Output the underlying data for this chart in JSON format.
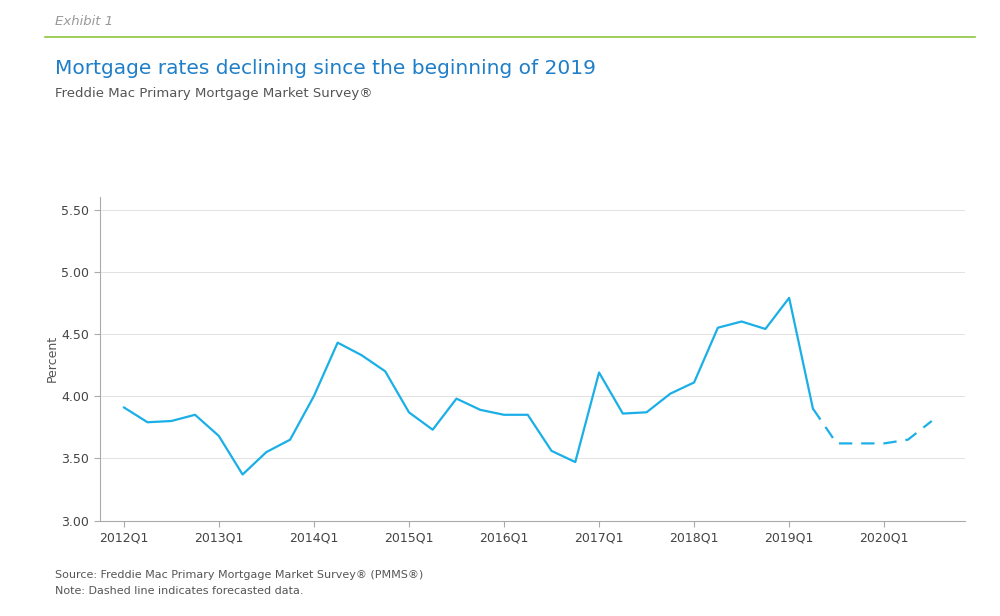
{
  "title": "Mortgage rates declining since the beginning of 2019",
  "subtitle": "Freddie Mac Primary Mortgage Market Survey®",
  "exhibit_label": "Exhibit 1",
  "ylabel": "Percent",
  "source_note": "Source: Freddie Mac Primary Mortgage Market Survey® (PMMS®)",
  "dashed_note": "Note: Dashed line indicates forecasted data.",
  "line_color": "#1AAFE6",
  "ylim": [
    3.0,
    5.6
  ],
  "yticks": [
    3.0,
    3.5,
    4.0,
    4.5,
    5.0,
    5.5
  ],
  "bg_color": "#ffffff",
  "exhibit_line_color": "#8DC63F",
  "solid_x": [
    2012.0,
    2012.25,
    2012.5,
    2012.75,
    2013.0,
    2013.25,
    2013.5,
    2013.75,
    2014.0,
    2014.25,
    2014.5,
    2014.75,
    2015.0,
    2015.25,
    2015.5,
    2015.75,
    2016.0,
    2016.25,
    2016.5,
    2016.75,
    2017.0,
    2017.25,
    2017.5,
    2017.75,
    2018.0,
    2018.25,
    2018.5,
    2018.75,
    2019.0,
    2019.25
  ],
  "solid_y": [
    3.91,
    3.79,
    3.8,
    3.85,
    3.68,
    3.37,
    3.55,
    3.65,
    4.0,
    4.43,
    4.33,
    4.2,
    3.87,
    3.73,
    3.98,
    3.89,
    3.85,
    3.85,
    3.56,
    3.47,
    4.19,
    3.86,
    3.87,
    4.02,
    4.11,
    4.55,
    4.6,
    4.54,
    4.79,
    3.9
  ],
  "dashed_x": [
    2019.25,
    2019.5,
    2019.75,
    2020.0,
    2020.25,
    2020.5
  ],
  "dashed_y": [
    3.9,
    3.62,
    3.62,
    3.62,
    3.65,
    3.8
  ],
  "xtick_positions": [
    2012.0,
    2013.0,
    2014.0,
    2015.0,
    2016.0,
    2017.0,
    2018.0,
    2019.0,
    2020.0
  ],
  "xtick_labels": [
    "2012Q1",
    "2013Q1",
    "2014Q1",
    "2015Q1",
    "2016Q1",
    "2017Q1",
    "2018Q1",
    "2019Q1",
    "2020Q1"
  ],
  "title_color": "#1E7EC8",
  "subtitle_color": "#555555",
  "exhibit_color": "#999999",
  "tick_label_color": "#444444",
  "ylabel_color": "#555555",
  "note_color": "#555555",
  "spine_color": "#aaaaaa"
}
